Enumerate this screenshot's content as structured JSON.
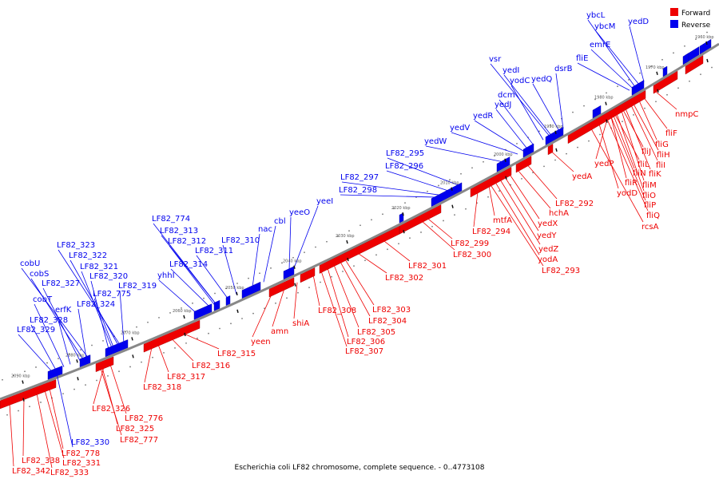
{
  "caption": "Escherichia coli LF82 chromosome, complete sequence. - 0..4773108",
  "colors": {
    "forward": "#ee0000",
    "reverse": "#0000ee",
    "backbone": "#888888"
  },
  "legend": [
    {
      "label": "Forward",
      "strand": "forward"
    },
    {
      "label": "Reverse",
      "strand": "reverse"
    }
  ],
  "ticks": [
    "1960 kbp",
    "1970 kbp",
    "1980 kbp",
    "1990 kbp",
    "2000 kbp",
    "2010 kbp",
    "2020 kbp",
    "2030 kbp",
    "2040 kbp",
    "2050 kbp",
    "2060 kbp",
    "2070 kbp",
    "2080 kbp",
    "2090 kbp"
  ],
  "genes": {
    "reverse": [
      "ybcL",
      "ybcM",
      "yedD",
      "emrE",
      "fliE",
      "vsr",
      "yedI",
      "dsrB",
      "yodC",
      "yedQ",
      "dcm",
      "yedJ",
      "yedR",
      "yedV",
      "yedW",
      "LF82_295",
      "LF82_296",
      "LF82_297",
      "LF82_298",
      "yeeI",
      "yeeO",
      "cbl",
      "nac",
      "LF82_774",
      "LF82_313",
      "LF82_312",
      "LF82_310",
      "LF82_311",
      "LF82_314",
      "yhhI",
      "LF82_323",
      "LF82_322",
      "cobU",
      "LF82_321",
      "cobS",
      "LF82_320",
      "LF82_327",
      "LF82_319",
      "LF82_775",
      "cobT",
      "LF82_324",
      "erfK",
      "LF82_328",
      "LF82_329",
      "LF82_330"
    ],
    "forward": [
      "nmpC",
      "fliF",
      "fliG",
      "fliH",
      "fliJ",
      "fliI",
      "fliL",
      "fliK",
      "yedP",
      "fliN",
      "fliM",
      "fliR",
      "fliO",
      "yodD",
      "fliP",
      "fliQ",
      "rcsA",
      "yedA",
      "LF82_292",
      "hchA",
      "mtfA",
      "LF82_294",
      "yedX",
      "yedY",
      "yedZ",
      "yodA",
      "LF82_293",
      "LF82_299",
      "LF82_300",
      "LF82_301",
      "LF82_302",
      "LF82_303",
      "LF82_304",
      "LF82_305",
      "LF82_306",
      "LF82_307",
      "LF82_308",
      "shiA",
      "amn",
      "yeen",
      "LF82_315",
      "LF82_316",
      "LF82_317",
      "LF82_318",
      "LF82_326",
      "LF82_776",
      "LF82_325",
      "LF82_777",
      "LF82_778",
      "LF82_331",
      "LF82_333",
      "LF82_338",
      "LF82_342"
    ]
  }
}
